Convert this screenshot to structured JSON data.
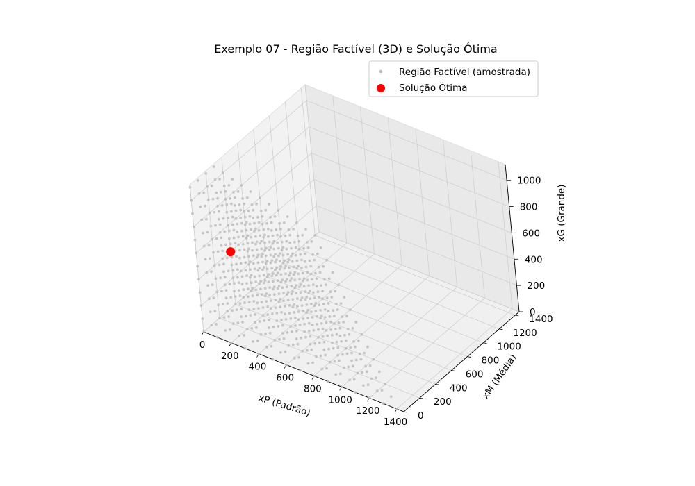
{
  "chart_data": {
    "type": "scatter",
    "title": "Exemplo 07 - Região Factível (3D) e Solução Ótima",
    "xlabel": "xP (Padrão)",
    "ylabel": "xM (Média)",
    "zlabel": "xG (Grande)",
    "xlim": [
      0,
      1450
    ],
    "ylim": [
      0,
      1450
    ],
    "zlim": [
      0,
      1120
    ],
    "xticks": [
      0,
      200,
      400,
      600,
      800,
      1000,
      1200,
      1400
    ],
    "yticks": [
      0,
      200,
      400,
      600,
      800,
      1000,
      1200,
      1400
    ],
    "zticks": [
      0,
      200,
      400,
      600,
      800,
      1000
    ],
    "grid": true,
    "legend_position": "top-right",
    "series": [
      {
        "name": "Região Factível (amostrada)",
        "color": "#bdbdbd",
        "marker": "small-dot",
        "sampling": {
          "step": 100,
          "constraint": "xP + xM + xG <= 1400"
        }
      },
      {
        "name": "Solução Ótima",
        "color": "#ff0000",
        "marker": "large-dot",
        "points": [
          {
            "x": 0,
            "y": 400,
            "z": 400
          }
        ]
      }
    ]
  }
}
